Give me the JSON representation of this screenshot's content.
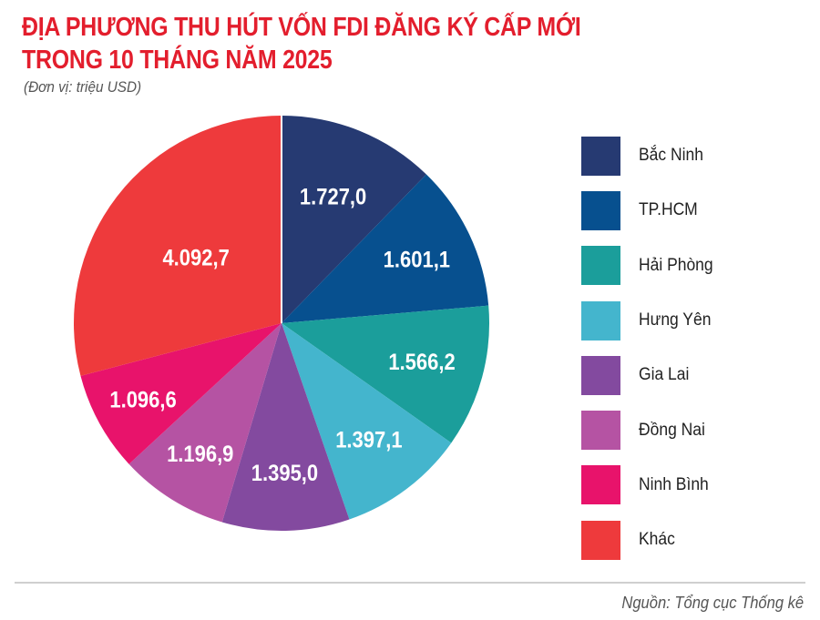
{
  "header": {
    "title_line1": "ĐỊA PHƯƠNG THU HÚT VỐN FDI ĐĂNG KÝ CẤP MỚI",
    "title_line2": "TRONG 10 THÁNG NĂM 2025",
    "unit": "(Đơn vị: triệu USD)"
  },
  "footer": {
    "source": "Nguồn: Tổng cục Thống kê"
  },
  "colors": {
    "title": "#e31e2d",
    "divider": "#cfcfcf"
  },
  "chart_data": {
    "type": "pie",
    "title": "ĐỊA PHƯƠNG THU HÚT VỐN FDI ĐĂNG KÝ CẤP MỚI TRONG 10 THÁNG NĂM 2025",
    "subtitle": "(Đơn vị: triệu USD)",
    "unit": "triệu USD",
    "start_angle_deg": 0,
    "direction": "clockwise",
    "legend_position": "right",
    "categories": [
      "Bắc Ninh",
      "TP.HCM",
      "Hải Phòng",
      "Hưng Yên",
      "Gia Lai",
      "Đồng Nai",
      "Ninh Bình",
      "Khác"
    ],
    "values": [
      1727.0,
      1601.1,
      1566.2,
      1397.1,
      1395.0,
      1196.9,
      1096.6,
      4092.7
    ],
    "labels": [
      "1.727,0",
      "1.601,1",
      "1.566,2",
      "1.397,1",
      "1.395,0",
      "1.196,9",
      "1.096,6",
      "4.092,7"
    ],
    "colors": [
      "#263a72",
      "#07508f",
      "#1b9e9b",
      "#44b5cd",
      "#834a9f",
      "#b553a3",
      "#e8136b",
      "#ee3a3c"
    ]
  },
  "legend": {
    "items": [
      {
        "label": "Bắc Ninh",
        "color": "#263a72"
      },
      {
        "label": "TP.HCM",
        "color": "#07508f"
      },
      {
        "label": "Hải Phòng",
        "color": "#1b9e9b"
      },
      {
        "label": "Hưng Yên",
        "color": "#44b5cd"
      },
      {
        "label": "Gia Lai",
        "color": "#834a9f"
      },
      {
        "label": "Đồng Nai",
        "color": "#b553a3"
      },
      {
        "label": "Ninh Bình",
        "color": "#e8136b"
      },
      {
        "label": "Khác",
        "color": "#ee3a3c"
      }
    ]
  }
}
